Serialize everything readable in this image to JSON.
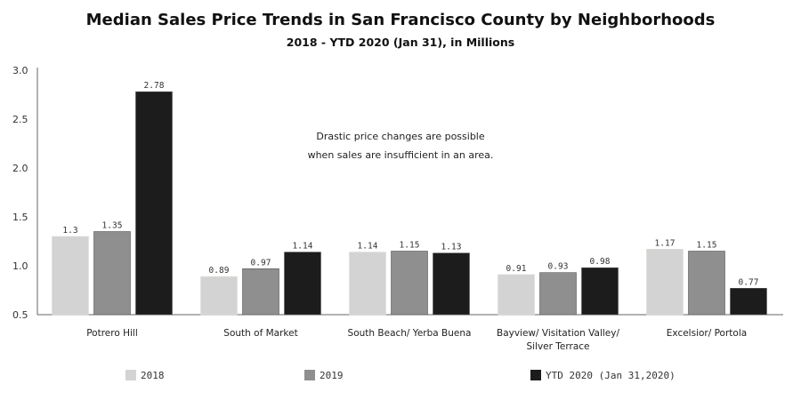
{
  "chart_data": {
    "type": "bar",
    "title": "Median Sales Price Trends in San Francisco County by Neighborhoods",
    "subtitle": "2018 - YTD 2020 (Jan 31), in Millions",
    "categories": [
      [
        "Potrero Hill"
      ],
      [
        "South of Market"
      ],
      [
        "South Beach/ Yerba Buena"
      ],
      [
        "Bayview/ Visitation Valley/",
        "Silver Terrace"
      ],
      [
        "Excelsior/ Portola"
      ]
    ],
    "series": [
      {
        "name": "2018",
        "color": "#d3d3d3",
        "values": [
          1.3,
          0.89,
          1.14,
          0.91,
          1.17
        ],
        "labels": [
          "1.3",
          "0.89",
          "1.14",
          "0.91",
          "1.17"
        ]
      },
      {
        "name": "2019",
        "color": "#8f8f8f",
        "values": [
          1.35,
          0.97,
          1.15,
          0.93,
          1.15
        ],
        "labels": [
          "1.35",
          "0.97",
          "1.15",
          "0.93",
          "1.15"
        ]
      },
      {
        "name": "YTD 2020 (Jan 31,2020)",
        "color": "#1c1c1c",
        "values": [
          2.78,
          1.14,
          1.13,
          0.98,
          0.77
        ],
        "labels": [
          "2.78",
          "1.14",
          "1.13",
          "0.98",
          "0.77"
        ]
      }
    ],
    "ylim": [
      0.5,
      3.0
    ],
    "yticks": [
      "0.5",
      "1.0",
      "1.5",
      "2.0",
      "2.5",
      "3.0"
    ],
    "grid": false,
    "legend_placement": "bottom",
    "annotation": [
      "Drastic price changes are possible",
      "when sales are insufficient in an area."
    ]
  }
}
